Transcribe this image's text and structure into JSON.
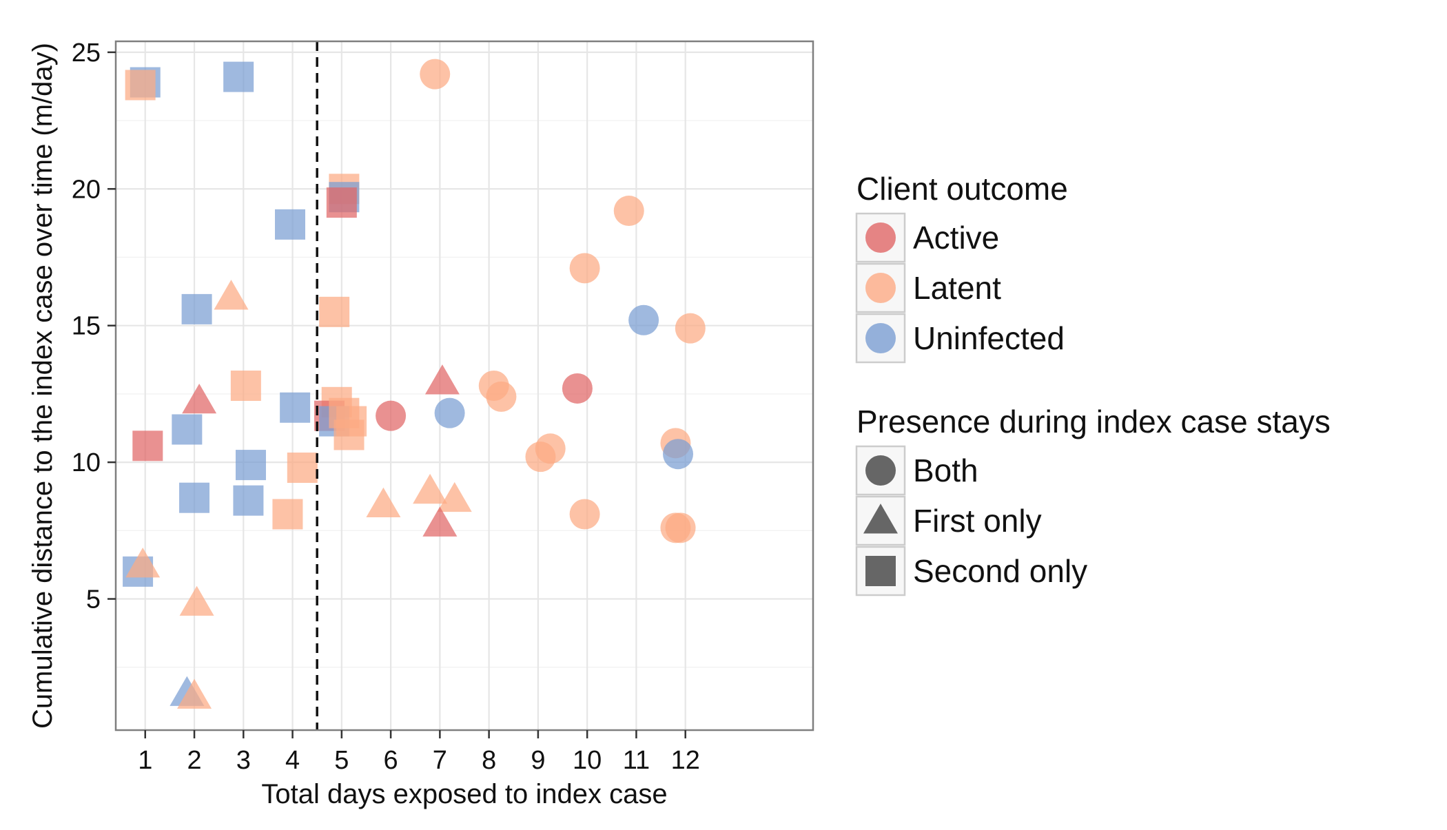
{
  "chart_data": {
    "type": "scatter",
    "title": "",
    "xlabel": "Total days exposed to index case",
    "ylabel": "Cumulative distance to the index case over time (m/day)",
    "xlim": [
      0.4,
      14.6
    ],
    "ylim": [
      0.2,
      25.4
    ],
    "xticks": [
      1,
      2,
      3,
      4,
      5,
      6,
      7,
      8,
      9,
      10,
      11,
      12
    ],
    "yticks": [
      5,
      10,
      15,
      20,
      25
    ],
    "grid": true,
    "reference_line": {
      "x": 4.5,
      "style": "dashed"
    },
    "colors": {
      "Active": "#e06666",
      "Latent": "#fcaa84",
      "Uninfected": "#7a9ed2"
    },
    "legend": {
      "placement": "right",
      "color_title": "Client outcome",
      "color_entries": [
        "Active",
        "Latent",
        "Uninfected"
      ],
      "shape_title": "Presence during index case stays",
      "shape_entries": [
        "Both",
        "First only",
        "Second only"
      ]
    },
    "points": [
      {
        "x": 1.0,
        "y": 23.9,
        "outcome": "Uninfected",
        "presence": "Second only"
      },
      {
        "x": 0.9,
        "y": 23.8,
        "outcome": "Latent",
        "presence": "Second only"
      },
      {
        "x": 2.9,
        "y": 24.1,
        "outcome": "Uninfected",
        "presence": "Second only"
      },
      {
        "x": 6.9,
        "y": 24.2,
        "outcome": "Latent",
        "presence": "Both"
      },
      {
        "x": 5.05,
        "y": 20.0,
        "outcome": "Latent",
        "presence": "Second only"
      },
      {
        "x": 5.05,
        "y": 19.7,
        "outcome": "Uninfected",
        "presence": "Second only"
      },
      {
        "x": 5.0,
        "y": 19.5,
        "outcome": "Active",
        "presence": "Second only"
      },
      {
        "x": 3.95,
        "y": 18.7,
        "outcome": "Uninfected",
        "presence": "Second only"
      },
      {
        "x": 2.05,
        "y": 15.6,
        "outcome": "Uninfected",
        "presence": "Second only"
      },
      {
        "x": 2.75,
        "y": 16.0,
        "outcome": "Latent",
        "presence": "First only"
      },
      {
        "x": 4.85,
        "y": 15.5,
        "outcome": "Latent",
        "presence": "Second only"
      },
      {
        "x": 10.85,
        "y": 19.2,
        "outcome": "Latent",
        "presence": "Both"
      },
      {
        "x": 9.95,
        "y": 17.1,
        "outcome": "Latent",
        "presence": "Both"
      },
      {
        "x": 11.15,
        "y": 15.2,
        "outcome": "Uninfected",
        "presence": "Both"
      },
      {
        "x": 12.1,
        "y": 14.9,
        "outcome": "Latent",
        "presence": "Both"
      },
      {
        "x": 3.05,
        "y": 12.8,
        "outcome": "Latent",
        "presence": "Second only"
      },
      {
        "x": 2.1,
        "y": 12.2,
        "outcome": "Active",
        "presence": "First only"
      },
      {
        "x": 4.05,
        "y": 12.0,
        "outcome": "Uninfected",
        "presence": "Second only"
      },
      {
        "x": 1.85,
        "y": 11.2,
        "outcome": "Uninfected",
        "presence": "Second only"
      },
      {
        "x": 1.05,
        "y": 10.6,
        "outcome": "Active",
        "presence": "Second only"
      },
      {
        "x": 4.9,
        "y": 12.2,
        "outcome": "Latent",
        "presence": "Second only"
      },
      {
        "x": 4.75,
        "y": 11.7,
        "outcome": "Active",
        "presence": "Second only"
      },
      {
        "x": 4.85,
        "y": 11.5,
        "outcome": "Uninfected",
        "presence": "Second only"
      },
      {
        "x": 5.05,
        "y": 11.8,
        "outcome": "Latent",
        "presence": "Second only"
      },
      {
        "x": 5.15,
        "y": 11.0,
        "outcome": "Latent",
        "presence": "Second only"
      },
      {
        "x": 5.2,
        "y": 11.5,
        "outcome": "Latent",
        "presence": "Second only"
      },
      {
        "x": 6.0,
        "y": 11.7,
        "outcome": "Active",
        "presence": "Both"
      },
      {
        "x": 7.05,
        "y": 12.9,
        "outcome": "Active",
        "presence": "First only"
      },
      {
        "x": 7.2,
        "y": 11.8,
        "outcome": "Uninfected",
        "presence": "Both"
      },
      {
        "x": 8.1,
        "y": 12.8,
        "outcome": "Latent",
        "presence": "Both"
      },
      {
        "x": 8.25,
        "y": 12.4,
        "outcome": "Latent",
        "presence": "Both"
      },
      {
        "x": 9.8,
        "y": 12.7,
        "outcome": "Active",
        "presence": "Both"
      },
      {
        "x": 3.15,
        "y": 9.9,
        "outcome": "Uninfected",
        "presence": "Second only"
      },
      {
        "x": 4.2,
        "y": 9.8,
        "outcome": "Latent",
        "presence": "Second only"
      },
      {
        "x": 2.0,
        "y": 8.7,
        "outcome": "Uninfected",
        "presence": "Second only"
      },
      {
        "x": 3.1,
        "y": 8.6,
        "outcome": "Uninfected",
        "presence": "Second only"
      },
      {
        "x": 3.9,
        "y": 8.1,
        "outcome": "Latent",
        "presence": "Second only"
      },
      {
        "x": 5.85,
        "y": 8.4,
        "outcome": "Latent",
        "presence": "First only"
      },
      {
        "x": 6.8,
        "y": 8.9,
        "outcome": "Latent",
        "presence": "First only"
      },
      {
        "x": 7.3,
        "y": 8.6,
        "outcome": "Latent",
        "presence": "First only"
      },
      {
        "x": 7.0,
        "y": 7.7,
        "outcome": "Active",
        "presence": "First only"
      },
      {
        "x": 9.05,
        "y": 10.2,
        "outcome": "Latent",
        "presence": "Both"
      },
      {
        "x": 9.25,
        "y": 10.5,
        "outcome": "Latent",
        "presence": "Both"
      },
      {
        "x": 9.95,
        "y": 8.1,
        "outcome": "Latent",
        "presence": "Both"
      },
      {
        "x": 11.8,
        "y": 10.7,
        "outcome": "Latent",
        "presence": "Both"
      },
      {
        "x": 11.85,
        "y": 10.3,
        "outcome": "Uninfected",
        "presence": "Both"
      },
      {
        "x": 11.8,
        "y": 7.6,
        "outcome": "Latent",
        "presence": "Both"
      },
      {
        "x": 11.9,
        "y": 7.6,
        "outcome": "Latent",
        "presence": "Both"
      },
      {
        "x": 0.85,
        "y": 6.0,
        "outcome": "Uninfected",
        "presence": "Second only"
      },
      {
        "x": 0.95,
        "y": 6.2,
        "outcome": "Latent",
        "presence": "First only"
      },
      {
        "x": 2.05,
        "y": 4.8,
        "outcome": "Latent",
        "presence": "First only"
      },
      {
        "x": 1.85,
        "y": 1.5,
        "outcome": "Uninfected",
        "presence": "First only"
      },
      {
        "x": 2.0,
        "y": 1.4,
        "outcome": "Latent",
        "presence": "First only"
      }
    ]
  }
}
